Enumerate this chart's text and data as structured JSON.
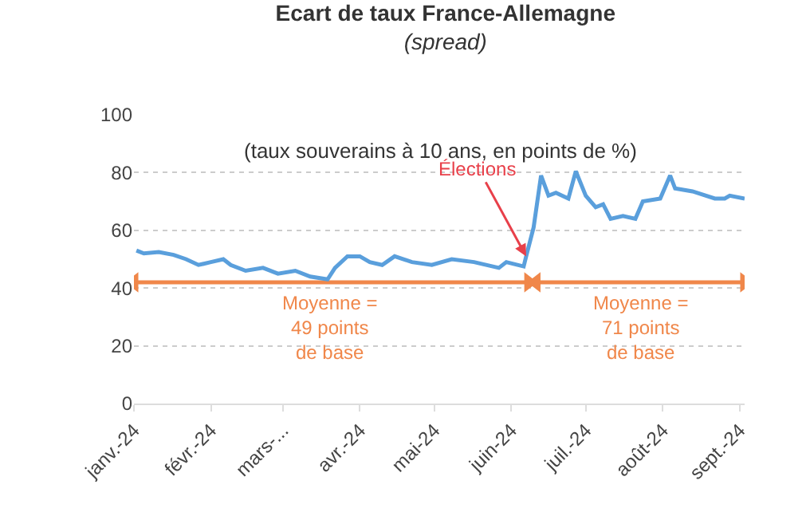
{
  "chart_data": {
    "type": "line",
    "title": "Ecart de taux France-Allemagne",
    "subtitle": "(spread)",
    "annotations": [
      "(taux souverains à 10 ans, en points de %)",
      {
        "text": "Élections",
        "x": "2024-06-07",
        "y": 51
      },
      "Moyenne =\n49 points\nde base",
      "Moyenne =\n71 points\nde base"
    ],
    "x": [
      "2024-01-02",
      "2024-01-05",
      "2024-01-11",
      "2024-01-17",
      "2024-01-22",
      "2024-01-27",
      "2024-02-01",
      "2024-02-06",
      "2024-02-09",
      "2024-02-15",
      "2024-02-22",
      "2024-02-28",
      "2024-03-06",
      "2024-03-12",
      "2024-03-19",
      "2024-03-22",
      "2024-03-27",
      "2024-04-01",
      "2024-04-05",
      "2024-04-10",
      "2024-04-15",
      "2024-04-22",
      "2024-04-30",
      "2024-05-08",
      "2024-05-17",
      "2024-05-27",
      "2024-05-30",
      "2024-06-06",
      "2024-06-07",
      "2024-06-10",
      "2024-06-13",
      "2024-06-16",
      "2024-06-19",
      "2024-06-24",
      "2024-06-27",
      "2024-07-01",
      "2024-07-05",
      "2024-07-08",
      "2024-07-11",
      "2024-07-16",
      "2024-07-21",
      "2024-07-24",
      "2024-07-31",
      "2024-08-04",
      "2024-08-06",
      "2024-08-13",
      "2024-08-22",
      "2024-08-26",
      "2024-08-28",
      "2024-09-03"
    ],
    "series": [
      {
        "color": "#f0874a",
        "x": [
          "2024-01-01",
          "2024-06-08"
        ],
        "values": [
          42,
          42
        ],
        "marker": "triangle"
      },
      {
        "color": "#f0874a",
        "x": [
          "2024-06-11",
          "2024-09-03"
        ],
        "values": [
          42,
          42
        ],
        "marker": "triangle"
      },
      {
        "color": "#5a9fdc",
        "values": [
          53,
          52,
          52.5,
          51.5,
          50,
          48,
          49,
          50,
          48,
          46,
          47,
          45,
          46,
          44,
          43,
          47,
          51,
          51,
          49,
          48,
          51,
          49,
          48,
          50,
          49,
          47,
          49,
          47.5,
          51,
          61,
          79,
          72,
          73,
          71,
          80.5,
          72,
          68,
          69,
          64,
          65,
          64,
          70,
          71,
          79,
          74.5,
          73.5,
          71,
          71,
          72,
          71
        ]
      }
    ],
    "xlim": [
      "2024-01-01",
      "2024-09-03"
    ],
    "xticks": [
      {
        "value": "2024-01-01",
        "label": "janv.-24"
      },
      {
        "value": "2024-02-01",
        "label": "févr.-24"
      },
      {
        "value": "2024-03-01",
        "label": "mars-..."
      },
      {
        "value": "2024-04-01",
        "label": "avr.-24"
      },
      {
        "value": "2024-05-01",
        "label": "mai-24"
      },
      {
        "value": "2024-06-01",
        "label": "juin-24"
      },
      {
        "value": "2024-07-01",
        "label": "juil.-24"
      },
      {
        "value": "2024-08-01",
        "label": "août-24"
      },
      {
        "value": "2024-09-01",
        "label": "sept.-24"
      }
    ],
    "ylim": [
      0,
      100
    ],
    "yticks": [
      0,
      20,
      40,
      60,
      80,
      100
    ],
    "grid": "y",
    "marker": "none",
    "line_style": "solid"
  }
}
